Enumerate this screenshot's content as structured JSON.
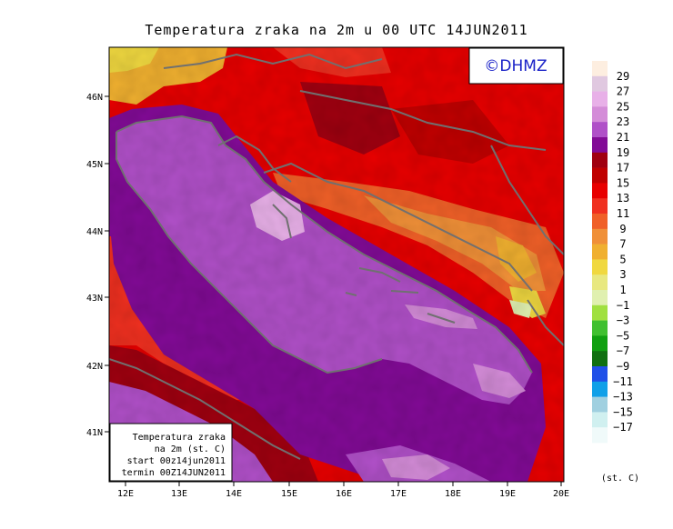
{
  "title": "Temperatura zraka na 2m u 00 UTC 14JUN2011",
  "logo": "©DHMZ",
  "info_box": {
    "line1": "Temperatura zraka",
    "line2": "na 2m (st. C)",
    "line3": "start 00z14jun2011",
    "line4": "termin 00Z14JUN2011"
  },
  "axes": {
    "lon_labels": [
      "12E",
      "13E",
      "14E",
      "15E",
      "16E",
      "17E",
      "18E",
      "19E",
      "20E"
    ],
    "lat_labels": [
      "46N",
      "45N",
      "44N",
      "43N",
      "42N",
      "41N"
    ]
  },
  "colorbar": {
    "unit": "(st. C)",
    "labels": [
      "29",
      "27",
      "25",
      "23",
      "21",
      "19",
      "17",
      "15",
      "13",
      "11",
      "9",
      "7",
      "5",
      "3",
      "1",
      "−1",
      "−3",
      "−5",
      "−7",
      "−9",
      "−11",
      "−13",
      "−15",
      "−17"
    ],
    "colors": [
      "#fdeee0",
      "#e0c8e0",
      "#e8b0e8",
      "#d48cd8",
      "#b050c8",
      "#820b96",
      "#a00010",
      "#c00000",
      "#e80000",
      "#f03020",
      "#f06028",
      "#f09038",
      "#f0b030",
      "#f0d840",
      "#e8e880",
      "#e0f0b0",
      "#a0e040",
      "#40c030",
      "#10a010",
      "#107010",
      "#2050e8",
      "#10a0e8",
      "#a0d0e0",
      "#d0f0f0",
      "#f0fafa"
    ]
  }
}
